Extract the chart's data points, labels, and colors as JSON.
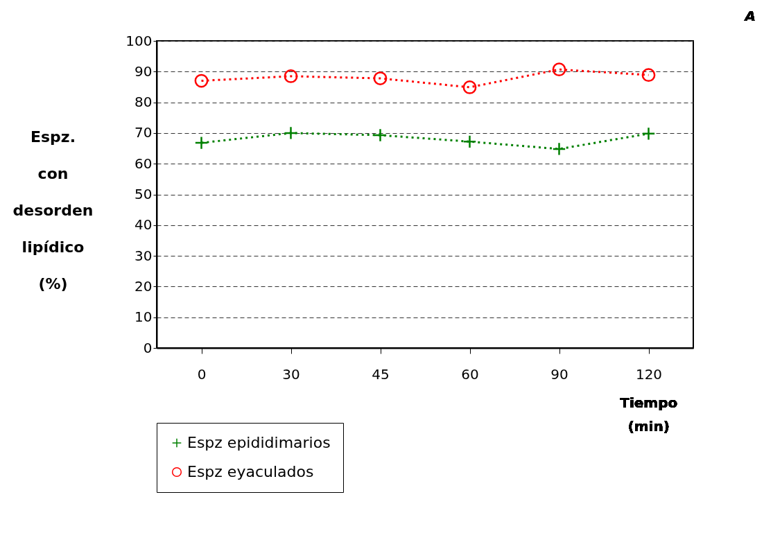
{
  "chart_data": {
    "type": "line",
    "ylabel": "Espz.\ncon\ndesorden\nlipídico\n(%)",
    "xlabel": "Tiempo\n(min)",
    "categories": [
      "0",
      "30",
      "45",
      "60",
      "90",
      "120"
    ],
    "series": [
      {
        "name": "Espz epididimarios",
        "color": "#008000",
        "marker": "cross",
        "values": [
          66.8,
          70.0,
          69.3,
          67.2,
          64.8,
          69.8
        ]
      },
      {
        "name": "Espz eyaculados",
        "color": "#ff0000",
        "marker": "circle",
        "values": [
          87.0,
          88.5,
          87.8,
          84.9,
          90.7,
          88.9
        ]
      }
    ],
    "ylim": [
      0,
      100
    ],
    "yticks": [
      0,
      10,
      20,
      30,
      40,
      50,
      60,
      70,
      80,
      90,
      100
    ],
    "grid": "y",
    "legend": "bottom",
    "line_style": "dotted",
    "annotations": [
      "A"
    ]
  }
}
